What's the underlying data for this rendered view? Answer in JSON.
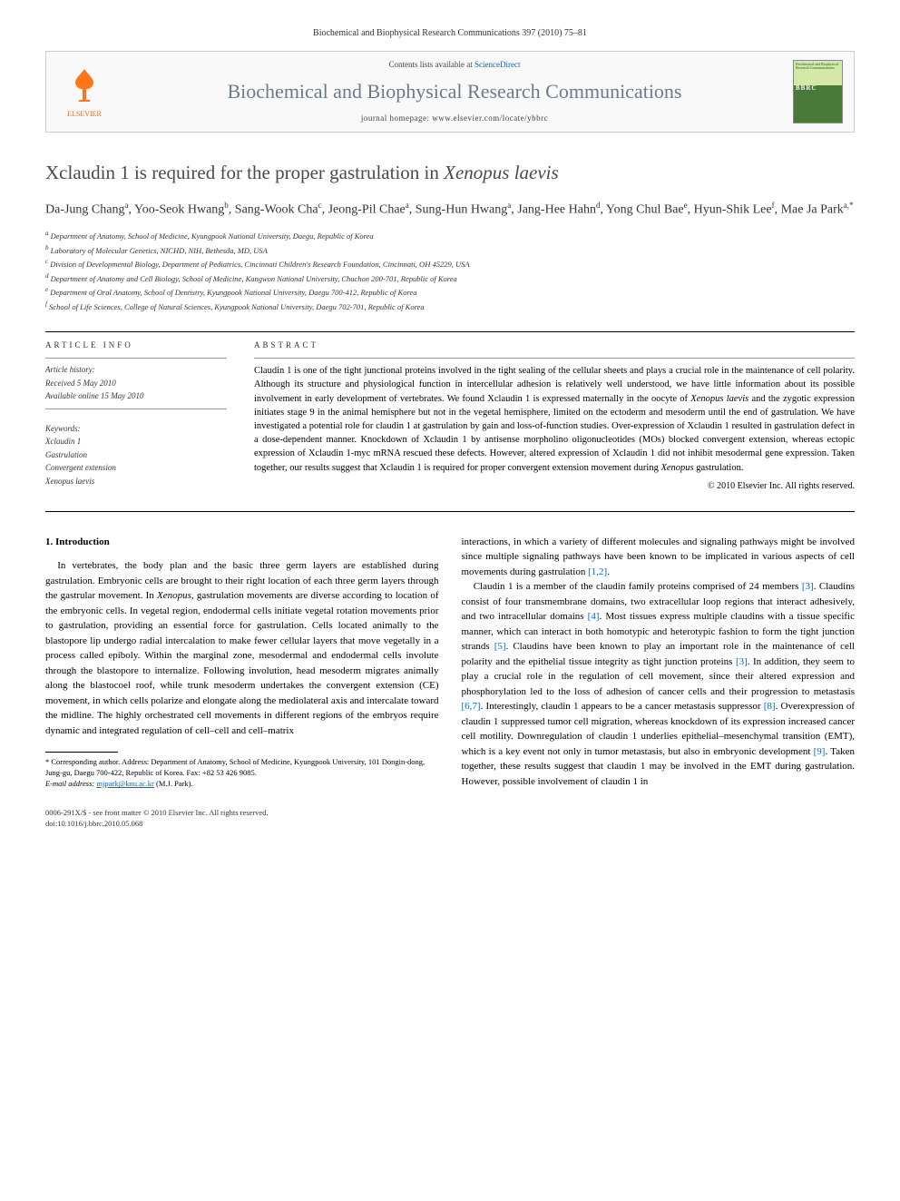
{
  "header_citation": "Biochemical and Biophysical Research Communications 397 (2010) 75–81",
  "banner": {
    "contents_prefix": "Contents lists available at ",
    "contents_link": "ScienceDirect",
    "journal_name": "Biochemical and Biophysical Research Communications",
    "homepage_prefix": "journal homepage: ",
    "homepage_url": "www.elsevier.com/locate/ybbrc",
    "elsevier_label": "ELSEVIER",
    "bbrc_cover_text": "Biochemical and Biophysical Research Communications",
    "bbrc_label": "BBRC"
  },
  "title_prefix": "Xclaudin 1 is required for the proper gastrulation in ",
  "title_species": "Xenopus laevis",
  "authors_html": "Da-Jung Chang<sup>a</sup>, Yoo-Seok Hwang<sup>b</sup>, Sang-Wook Cha<sup>c</sup>, Jeong-Pil Chae<sup>a</sup>, Sung-Hun Hwang<sup>a</sup>, Jang-Hee Hahn<sup>d</sup>, Yong Chul Bae<sup>e</sup>, Hyun-Shik Lee<sup>f</sup>, Mae Ja Park<sup>a,*</sup>",
  "affiliations": [
    "a Department of Anatomy, School of Medicine, Kyungpook National University, Daegu, Republic of Korea",
    "b Laboratory of Molecular Genetics, NICHD, NIH, Bethesda, MD, USA",
    "c Division of Developmental Biology, Department of Pediatrics, Cincinnati Children's Research Foundation, Cincinnati, OH 45229, USA",
    "d Department of Anatomy and Cell Biology, School of Medicine, Kangwon National University, Chuchon 200-701, Republic of Korea",
    "e Department of Oral Anatomy, School of Dentistry, Kyungpook National University, Daegu 700-412, Republic of Korea",
    "f School of Life Sciences, College of Natural Sciences, Kyungpook National University, Daegu 702-701, Republic of Korea"
  ],
  "article_info": {
    "heading": "ARTICLE INFO",
    "history_label": "Article history:",
    "received": "Received 5 May 2010",
    "online": "Available online 15 May 2010",
    "keywords_label": "Keywords:",
    "keywords": [
      "Xclaudin 1",
      "Gastrulation",
      "Convergent extension",
      "Xenopus laevis"
    ]
  },
  "abstract": {
    "heading": "ABSTRACT",
    "text": "Claudin 1 is one of the tight junctional proteins involved in the tight sealing of the cellular sheets and plays a crucial role in the maintenance of cell polarity. Although its structure and physiological function in intercellular adhesion is relatively well understood, we have little information about its possible involvement in early development of vertebrates. We found Xclaudin 1 is expressed maternally in the oocyte of Xenopus laevis and the zygotic expression initiates stage 9 in the animal hemisphere but not in the vegetal hemisphere, limited on the ectoderm and mesoderm until the end of gastrulation. We have investigated a potential role for claudin 1 at gastrulation by gain and loss-of-function studies. Over-expression of Xclaudin 1 resulted in gastrulation defect in a dose-dependent manner. Knockdown of Xclaudin 1 by antisense morpholino oligonucleotides (MOs) blocked convergent extension, whereas ectopic expression of Xclaudin 1-myc mRNA rescued these defects. However, altered expression of Xclaudin 1 did not inhibit mesodermal gene expression. Taken together, our results suggest that Xclaudin 1 is required for proper convergent extension movement during Xenopus gastrulation.",
    "copyright": "© 2010 Elsevier Inc. All rights reserved."
  },
  "body": {
    "section_heading": "1. Introduction",
    "col1_p1": "In vertebrates, the body plan and the basic three germ layers are established during gastrulation. Embryonic cells are brought to their right location of each three germ layers through the gastrular movement. In Xenopus, gastrulation movements are diverse according to location of the embryonic cells. In vegetal region, endodermal cells initiate vegetal rotation movements prior to gastrulation, providing an essential force for gastrulation. Cells located animally to the blastopore lip undergo radial intercalation to make fewer cellular layers that move vegetally in a process called epiboly. Within the marginal zone, mesodermal and endodermal cells involute through the blastopore to internalize. Following involution, head mesoderm migrates animally along the blastocoel roof, while trunk mesoderm undertakes the convergent extension (CE) movement, in which cells polarize and elongate along the mediolateral axis and intercalate toward the midline. The highly orchestrated cell movements in different regions of the embryos require dynamic and integrated regulation of cell–cell and cell–matrix",
    "col2_p1": "interactions, in which a variety of different molecules and signaling pathways might be involved since multiple signaling pathways have been known to be implicated in various aspects of cell movements during gastrulation [1,2].",
    "col2_p2": "Claudin 1 is a member of the claudin family proteins comprised of 24 members [3]. Claudins consist of four transmembrane domains, two extracellular loop regions that interact adhesively, and two intracellular domains [4]. Most tissues express multiple claudins with a tissue specific manner, which can interact in both homotypic and heterotypic fashion to form the tight junction strands [5]. Claudins have been known to play an important role in the maintenance of cell polarity and the epithelial tissue integrity as tight junction proteins [3]. In addition, they seem to play a crucial role in the regulation of cell movement, since their altered expression and phosphorylation led to the loss of adhesion of cancer cells and their progression to metastasis [6,7]. Interestingly, claudin 1 appears to be a cancer metastasis suppressor [8]. Overexpression of claudin 1 suppressed tumor cell migration, whereas knockdown of its expression increased cancer cell motility. Downregulation of claudin 1 underlies epithelial–mesenchymal transition (EMT), which is a key event not only in tumor metastasis, but also in embryonic development [9]. Taken together, these results suggest that claudin 1 may be involved in the EMT during gastrulation. However, possible involvement of claudin 1 in"
  },
  "footnote": {
    "corresponding": "* Corresponding author. Address: Department of Anatomy, School of Medicine, Kyungpook University, 101 Dongin-dong, Jung-gu, Daegu 700-422, Republic of Korea. Fax: +82 53 426 9085.",
    "email_label": "E-mail address:",
    "email": "mjpark@knu.ac.kr",
    "email_suffix": "(M.J. Park)."
  },
  "footer": {
    "line1": "0006-291X/$ - see front matter © 2010 Elsevier Inc. All rights reserved.",
    "line2": "doi:10.1016/j.bbrc.2010.05.068"
  },
  "colors": {
    "link": "#0066cc",
    "journal_name": "#6b7a8f",
    "elsevier_orange": "#ff6600"
  }
}
